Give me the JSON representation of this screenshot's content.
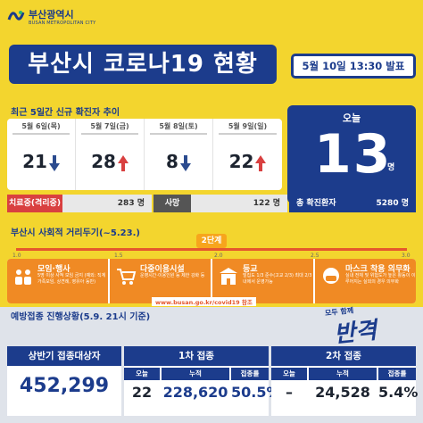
{
  "header": {
    "org_name": "부산광역시",
    "org_sub": "BUSAN METROPOLITAN CITY",
    "title": "부산시 코로나19 현황",
    "announce": "5월 10일 13:30 발표"
  },
  "trend": {
    "title": "최근 5일간 신규 확진자 추이",
    "days": [
      {
        "label": "5월 6일(목)",
        "value": "21",
        "direction": "down"
      },
      {
        "label": "5월 7일(금)",
        "value": "28",
        "direction": "up"
      },
      {
        "label": "5월 8일(토)",
        "value": "8",
        "direction": "down"
      },
      {
        "label": "5월 9일(일)",
        "value": "22",
        "direction": "up"
      }
    ],
    "today_label": "오늘",
    "today_value": "13",
    "today_unit": "명"
  },
  "status": {
    "treating_label": "치료중(격리중)",
    "treating_value": "283 명",
    "death_label": "사망",
    "death_value": "122 명",
    "total_label": "총 확진환자",
    "total_value": "5280 명"
  },
  "distancing": {
    "title": "부산시 사회적 거리두기(~5.23.)",
    "stage": "2단계",
    "ticks": [
      "1.0",
      "1.5",
      "2.0",
      "2.5",
      "3.0"
    ],
    "rules": [
      {
        "title": "모임·행사",
        "desc": "5명 이상 사적 모임 금지 (예외: 직계가족모임, 상견례, 영유아 동반)"
      },
      {
        "title": "다중이용시설",
        "desc": "운영시간·이용인원 등 제한 강화 등"
      },
      {
        "title": "등교",
        "desc": "밀집도 1/3 준수(고교 2/3) 최대 2/3 내에서 운영가능"
      },
      {
        "title": "마스크 착용 의무화",
        "desc": "실내 전체 및 위험도가 높은 활동이 이루어지는 실외의 경우 의무화"
      }
    ],
    "site": "www.busan.go.kr/covid19 참조"
  },
  "vaccine": {
    "title": "예방접종 진행상황(5.9. 21시 기준)",
    "slogan_small": "모두 함께",
    "slogan_big": "반격",
    "target_label": "상반기 접종대상자",
    "target_value": "452,299",
    "dose1": {
      "label": "1차 접종",
      "sub": [
        "오늘",
        "누적",
        "접종률"
      ],
      "today": "22",
      "cumulative": "228,620",
      "rate": "50.5%"
    },
    "dose2": {
      "label": "2차 접종",
      "sub": [
        "오늘",
        "누적",
        "접종률"
      ],
      "today": "–",
      "cumulative": "24,528",
      "rate": "5.4%"
    }
  },
  "colors": {
    "navy": "#1c3c8c",
    "yellow": "#f3d52e",
    "red": "#d94040",
    "orange": "#f08a24"
  }
}
